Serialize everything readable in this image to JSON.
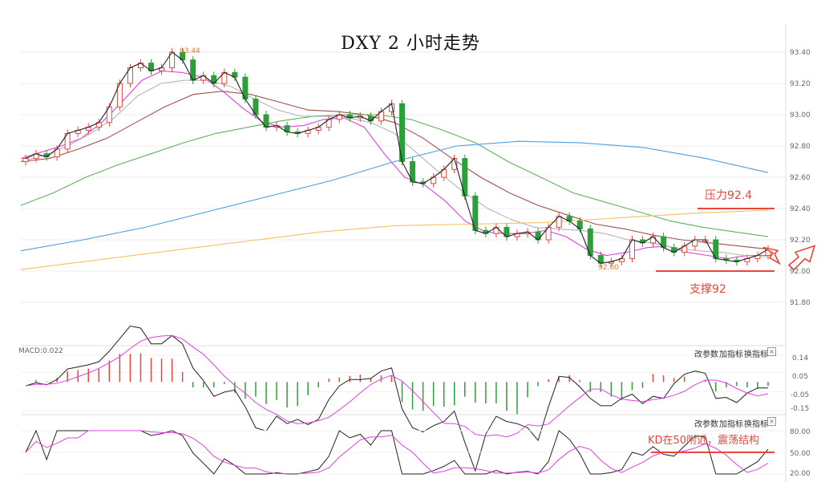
{
  "chart_data": {
    "type": "candlestick",
    "title": "DXY 2 小时走势",
    "price_axis": {
      "ticks": [
        "93.40",
        "93.20",
        "93.00",
        "92.80",
        "92.60",
        "92.40",
        "92.20",
        "92.00",
        "91.80"
      ],
      "values": [
        93.4,
        93.2,
        93.0,
        92.8,
        92.6,
        92.4,
        92.2,
        92.0,
        91.8
      ]
    },
    "high_marker": "93.44",
    "low_marker": "92.00",
    "levels": {
      "resistance": {
        "label": "压力92.4",
        "value": 92.4
      },
      "support": {
        "label": "支撑92",
        "value": 92.0
      }
    },
    "colors": {
      "up": "#e8453c",
      "down": "#2e9e3a",
      "ma5": "#222222",
      "ma10": "#e040e0",
      "ma20": "#b5b5b5",
      "ma30": "#a05050",
      "ma60": "#60b060",
      "ma120": "#4a9fe0",
      "ma250": "#f5c060"
    },
    "close_path": [
      92.72,
      92.75,
      92.73,
      92.78,
      92.88,
      92.9,
      92.92,
      92.95,
      93.05,
      93.2,
      93.3,
      93.33,
      93.28,
      93.3,
      93.4,
      93.35,
      93.22,
      93.25,
      93.2,
      93.27,
      93.24,
      93.1,
      93.0,
      92.92,
      92.93,
      92.89,
      92.88,
      92.9,
      92.92,
      92.97,
      93.0,
      92.98,
      92.99,
      92.96,
      93.02,
      93.07,
      92.7,
      92.57,
      92.56,
      92.6,
      92.65,
      92.72,
      92.48,
      92.26,
      92.24,
      92.28,
      92.22,
      92.24,
      92.25,
      92.2,
      92.28,
      92.35,
      92.32,
      92.27,
      92.1,
      92.05,
      92.06,
      92.08,
      92.2,
      92.18,
      92.22,
      92.15,
      92.12,
      92.16,
      92.2,
      92.2,
      92.08,
      92.07,
      92.06,
      92.08,
      92.1,
      92.14
    ],
    "ma_paths": {
      "ma10": [
        92.72,
        92.76,
        92.8,
        92.85,
        92.95,
        93.08,
        93.22,
        93.28,
        93.27,
        93.24,
        93.15,
        93.04,
        92.95,
        92.92,
        92.93,
        92.97,
        92.98,
        92.92,
        92.75,
        92.6,
        92.55,
        92.45,
        92.32,
        92.25,
        92.24,
        92.24,
        92.26,
        92.22,
        92.14,
        92.1,
        92.12,
        92.15,
        92.16,
        92.12,
        92.1,
        92.08,
        92.1,
        92.1
      ],
      "ma20": [
        92.7,
        92.74,
        92.8,
        92.88,
        92.98,
        93.12,
        93.2,
        93.22,
        93.22,
        93.18,
        93.1,
        93.03,
        92.99,
        92.99,
        92.98,
        92.95,
        92.88,
        92.75,
        92.62,
        92.5,
        92.4,
        92.33,
        92.28,
        92.27,
        92.26,
        92.24,
        92.2,
        92.18,
        92.15,
        92.13,
        92.12,
        92.1,
        92.09
      ],
      "ma30": [
        92.7,
        92.72,
        92.78,
        92.85,
        92.95,
        93.05,
        93.13,
        93.15,
        93.13,
        93.08,
        93.03,
        93.02,
        93.0,
        92.95,
        92.85,
        92.72,
        92.6,
        92.5,
        92.42,
        92.36,
        92.3,
        92.27,
        92.23,
        92.2,
        92.18,
        92.16,
        92.14
      ],
      "ma60": [
        92.42,
        92.5,
        92.6,
        92.68,
        92.75,
        92.82,
        92.88,
        92.92,
        92.96,
        92.99,
        93.0,
        93.0,
        92.97,
        92.9,
        92.82,
        92.7,
        92.6,
        92.5,
        92.44,
        92.38,
        92.32,
        92.28,
        92.25,
        92.22
      ],
      "ma120": [
        92.13,
        92.2,
        92.28,
        92.38,
        92.48,
        92.58,
        92.7,
        92.8,
        92.83,
        92.82,
        92.79,
        92.72,
        92.63
      ],
      "ma250": [
        92.01,
        92.07,
        92.13,
        92.19,
        92.25,
        92.29,
        92.3,
        92.31,
        92.34,
        92.37,
        92.39
      ]
    }
  },
  "macd": {
    "label": "MACD:0.022",
    "ticks": [
      "0.14",
      "0.05",
      "-0.05",
      "-0.15"
    ],
    "values": [
      0.14,
      0.05,
      -0.05,
      -0.15
    ]
  },
  "kd": {
    "ticks": [
      "80.00",
      "50.00",
      "20.00"
    ],
    "values": [
      80,
      50,
      20
    ],
    "annotation": "KD在50附近，震荡结构"
  },
  "buttons": {
    "params": "改参数",
    "add": "加指标",
    "swap": "换指标",
    "close": "×"
  }
}
